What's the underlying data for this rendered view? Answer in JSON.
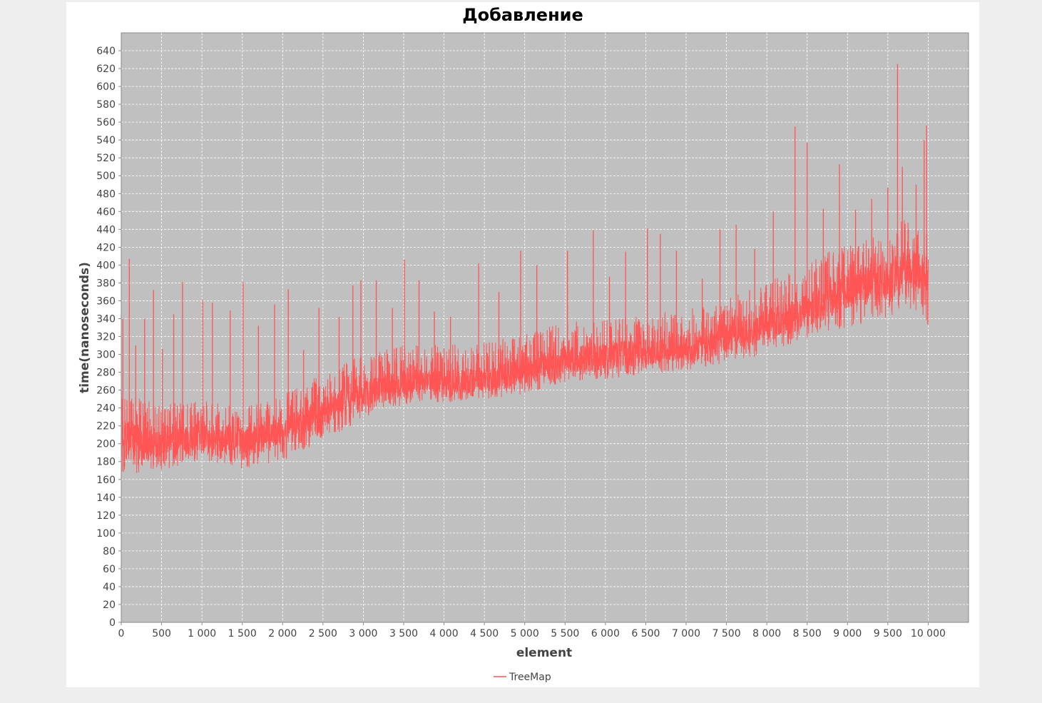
{
  "chart_data": {
    "type": "line",
    "title": "Добавление",
    "xlabel": "element",
    "ylabel": "time(nanoseconds)",
    "xlim": [
      0,
      10500
    ],
    "ylim": [
      0,
      660
    ],
    "grid": true,
    "legend_position": "bottom-center",
    "x_ticks": [
      0,
      500,
      1000,
      1500,
      2000,
      2500,
      3000,
      3500,
      4000,
      4500,
      5000,
      5500,
      6000,
      6500,
      7000,
      7500,
      8000,
      8500,
      9000,
      9500,
      10000
    ],
    "x_tick_labels": [
      "0",
      "500",
      "1 000",
      "1 500",
      "2 000",
      "2 500",
      "3 000",
      "3 500",
      "4 000",
      "4 500",
      "5 000",
      "5 500",
      "6 000",
      "6 500",
      "7 000",
      "7 500",
      "8 000",
      "8 500",
      "9 000",
      "9 500",
      "10 000"
    ],
    "y_ticks": [
      0,
      20,
      40,
      60,
      80,
      100,
      120,
      140,
      160,
      180,
      200,
      220,
      240,
      260,
      280,
      300,
      320,
      340,
      360,
      380,
      400,
      420,
      440,
      460,
      480,
      500,
      520,
      540,
      560,
      580,
      600,
      620,
      640
    ],
    "y_tick_labels": [
      "0",
      "20",
      "40",
      "60",
      "80",
      "100",
      "120",
      "140",
      "160",
      "180",
      "200",
      "220",
      "240",
      "260",
      "280",
      "300",
      "320",
      "340",
      "360",
      "380",
      "400",
      "420",
      "440",
      "460",
      "480",
      "500",
      "520",
      "540",
      "560",
      "580",
      "600",
      "620",
      "640"
    ],
    "series": [
      {
        "name": "TreeMap",
        "color": "#ff5555",
        "x": [
          0,
          250,
          500,
          750,
          1000,
          1250,
          1500,
          1750,
          2000,
          2250,
          2500,
          2750,
          3000,
          3250,
          3500,
          3750,
          4000,
          4250,
          4500,
          4750,
          5000,
          5250,
          5500,
          5750,
          6000,
          6250,
          6500,
          6750,
          7000,
          7250,
          7500,
          7750,
          8000,
          8250,
          8500,
          8750,
          9000,
          9250,
          9500,
          9750,
          10000
        ],
        "lower": [
          160,
          168,
          170,
          176,
          180,
          178,
          172,
          175,
          180,
          192,
          205,
          215,
          228,
          236,
          242,
          248,
          245,
          248,
          250,
          252,
          255,
          262,
          268,
          270,
          272,
          275,
          278,
          280,
          282,
          285,
          290,
          295,
          300,
          310,
          318,
          325,
          330,
          335,
          342,
          350,
          333
        ],
        "median": [
          205,
          200,
          202,
          206,
          208,
          206,
          203,
          207,
          212,
          225,
          235,
          245,
          255,
          262,
          266,
          270,
          268,
          270,
          272,
          276,
          282,
          288,
          294,
          296,
          298,
          300,
          302,
          304,
          308,
          312,
          318,
          325,
          332,
          340,
          350,
          360,
          372,
          378,
          385,
          395,
          385
        ],
        "upper": [
          260,
          250,
          245,
          248,
          250,
          245,
          242,
          248,
          255,
          265,
          280,
          290,
          300,
          305,
          310,
          312,
          310,
          312,
          315,
          318,
          322,
          330,
          336,
          338,
          340,
          343,
          346,
          348,
          352,
          356,
          362,
          372,
          380,
          392,
          405,
          415,
          425,
          430,
          438,
          460,
          440
        ],
        "spikes": [
          {
            "x": 20,
            "y": 340
          },
          {
            "x": 100,
            "y": 407
          },
          {
            "x": 180,
            "y": 310
          },
          {
            "x": 290,
            "y": 340
          },
          {
            "x": 400,
            "y": 372
          },
          {
            "x": 510,
            "y": 306
          },
          {
            "x": 650,
            "y": 345
          },
          {
            "x": 760,
            "y": 381
          },
          {
            "x": 1010,
            "y": 361
          },
          {
            "x": 1130,
            "y": 358
          },
          {
            "x": 1350,
            "y": 349
          },
          {
            "x": 1510,
            "y": 381
          },
          {
            "x": 1700,
            "y": 332
          },
          {
            "x": 1900,
            "y": 356
          },
          {
            "x": 2070,
            "y": 373
          },
          {
            "x": 2260,
            "y": 305
          },
          {
            "x": 2450,
            "y": 352
          },
          {
            "x": 2700,
            "y": 342
          },
          {
            "x": 2870,
            "y": 377
          },
          {
            "x": 2970,
            "y": 383
          },
          {
            "x": 3160,
            "y": 383
          },
          {
            "x": 3360,
            "y": 352
          },
          {
            "x": 3510,
            "y": 406
          },
          {
            "x": 3690,
            "y": 383
          },
          {
            "x": 3880,
            "y": 348
          },
          {
            "x": 4080,
            "y": 342
          },
          {
            "x": 4430,
            "y": 402
          },
          {
            "x": 4680,
            "y": 370
          },
          {
            "x": 4950,
            "y": 416
          },
          {
            "x": 5150,
            "y": 400
          },
          {
            "x": 5530,
            "y": 416
          },
          {
            "x": 5850,
            "y": 439
          },
          {
            "x": 6050,
            "y": 387
          },
          {
            "x": 6250,
            "y": 415
          },
          {
            "x": 6520,
            "y": 441
          },
          {
            "x": 6680,
            "y": 435
          },
          {
            "x": 6880,
            "y": 416
          },
          {
            "x": 7200,
            "y": 385
          },
          {
            "x": 7420,
            "y": 440
          },
          {
            "x": 7620,
            "y": 445
          },
          {
            "x": 7850,
            "y": 418
          },
          {
            "x": 8080,
            "y": 460
          },
          {
            "x": 8350,
            "y": 555
          },
          {
            "x": 8500,
            "y": 537
          },
          {
            "x": 8700,
            "y": 463
          },
          {
            "x": 8900,
            "y": 513
          },
          {
            "x": 9100,
            "y": 462
          },
          {
            "x": 9300,
            "y": 474
          },
          {
            "x": 9500,
            "y": 487
          },
          {
            "x": 9620,
            "y": 625
          },
          {
            "x": 9680,
            "y": 510
          },
          {
            "x": 9850,
            "y": 490
          },
          {
            "x": 9950,
            "y": 540
          },
          {
            "x": 9980,
            "y": 556
          }
        ]
      }
    ]
  }
}
